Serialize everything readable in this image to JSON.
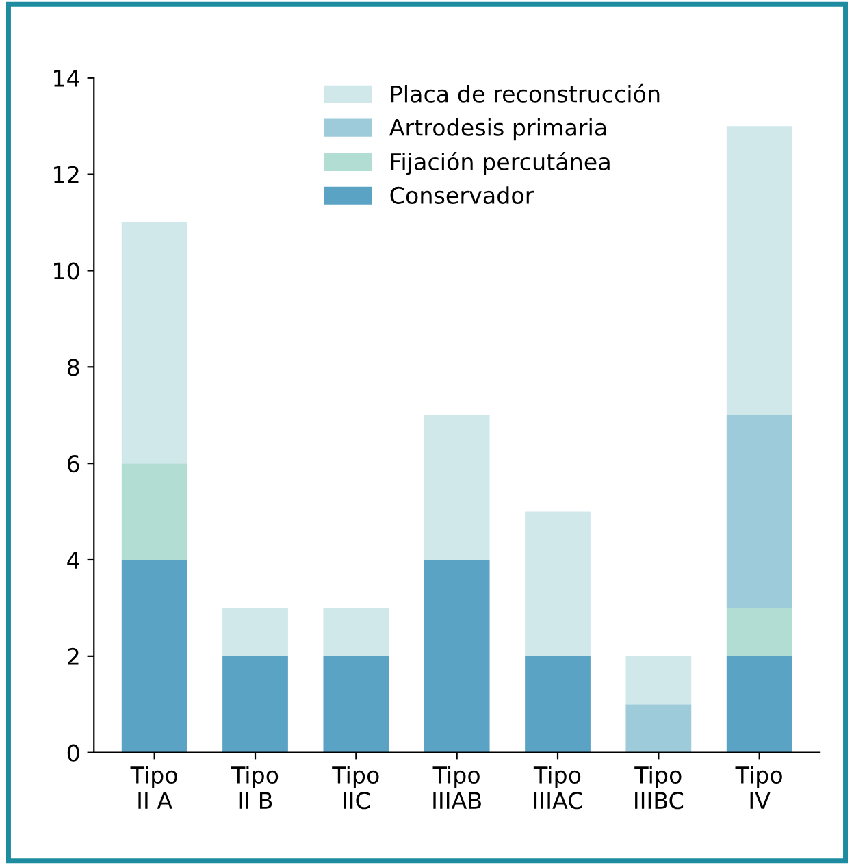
{
  "chart_data": {
    "type": "bar",
    "stacked": true,
    "categories": [
      "Tipo\nII A",
      "Tipo\nII B",
      "Tipo\nIIC",
      "Tipo\nIIIAB",
      "Tipo\nIIIAC",
      "Tipo\nIIIBC",
      "Tipo\nIV"
    ],
    "series": [
      {
        "name": "Conservador",
        "color": "#5ba3c4",
        "values": [
          4,
          2,
          2,
          4,
          2,
          0,
          2
        ]
      },
      {
        "name": "Fijación percutánea",
        "color": "#b2ddd2",
        "values": [
          2,
          0,
          0,
          0,
          0,
          0,
          1
        ]
      },
      {
        "name": "Artrodesis primaria",
        "color": "#9dcbd9",
        "values": [
          0,
          0,
          0,
          0,
          0,
          1,
          4
        ]
      },
      {
        "name": "Placa de reconstrucción",
        "color": "#d0e8ea",
        "values": [
          5,
          1,
          1,
          3,
          3,
          1,
          6
        ]
      }
    ],
    "ylim": [
      0,
      14
    ],
    "yticks": [
      0,
      2,
      4,
      6,
      8,
      10,
      12,
      14
    ],
    "grid": false,
    "legend": "top"
  }
}
